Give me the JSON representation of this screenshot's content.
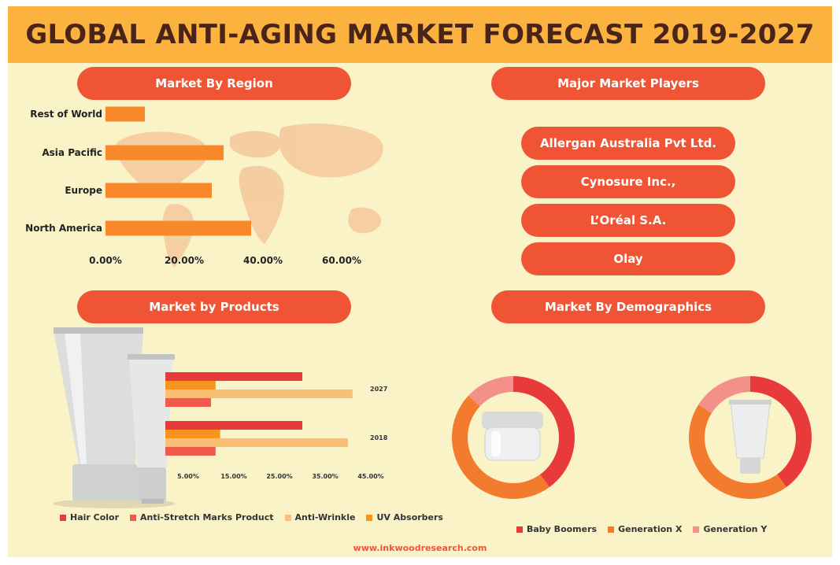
{
  "title": "GLOBAL ANTI-AGING MARKET FORECAST 2019-2027",
  "colors": {
    "background": "#faf3c8",
    "header": "#fcb23e",
    "title_text": "#4a2418",
    "pill": "#ef5434",
    "region_bar": "#f7892b",
    "map": "#f3c89b",
    "hair_color": "#e83a3a",
    "anti_stretch": "#ef5a4a",
    "anti_wrinkle": "#f9bf74",
    "uv_absorbers": "#f7941d",
    "baby_boomers": "#e83a3a",
    "generation_x": "#f37b2d",
    "generation_y": "#f4908a"
  },
  "sections": {
    "region": "Market By Region",
    "players": "Major Market Players",
    "products": "Market by Products",
    "demographics": "Market By Demographics"
  },
  "players": [
    "Allergan Australia Pvt Ltd.",
    "Cynosure Inc.,",
    "L’Oréal S.A.",
    "Olay"
  ],
  "footer": "www.inkwoodresearch.com",
  "chart_data": [
    {
      "type": "bar",
      "orientation": "horizontal",
      "title": "Market By Region",
      "categories": [
        "Rest of World",
        "Asia Pacific",
        "Europe",
        "North America"
      ],
      "values": [
        10,
        30,
        27,
        37
      ],
      "unit": "%",
      "xlim": [
        0,
        70
      ],
      "ticks": [
        0,
        20,
        40,
        60
      ],
      "tick_labels": [
        "0.00%",
        "20.00%",
        "40.00%",
        "60.00%"
      ],
      "icon": "world-map-icon"
    },
    {
      "type": "bar",
      "orientation": "horizontal",
      "title": "Market by Products",
      "groups": [
        "2027",
        "2018"
      ],
      "series": [
        {
          "name": "Hair Color",
          "values": [
            30,
            30
          ]
        },
        {
          "name": "Anti-Stretch Marks Product",
          "values": [
            10,
            11
          ]
        },
        {
          "name": "Anti-Wrinkle",
          "values": [
            41,
            40
          ]
        },
        {
          "name": "UV Absorbers",
          "values": [
            11,
            12
          ]
        }
      ],
      "bar_order": [
        "Hair Color",
        "UV Absorbers",
        "Anti-Wrinkle",
        "Anti-Stretch Marks Product"
      ],
      "unit": "%",
      "xlim": [
        0,
        50
      ],
      "ticks": [
        5,
        15,
        25,
        35,
        45
      ],
      "tick_labels": [
        "5.00%",
        "15.00%",
        "25.00%",
        "35.00%",
        "45.00%"
      ]
    },
    {
      "type": "pie",
      "donut": true,
      "title": "Market By Demographics",
      "charts": [
        {
          "name": "demographics-donut-1",
          "icon": "cream-jar-icon",
          "slices": [
            {
              "label": "Baby Boomers",
              "value": 40
            },
            {
              "label": "Generation X",
              "value": 47
            },
            {
              "label": "Generation Y",
              "value": 13
            }
          ]
        },
        {
          "name": "demographics-donut-2",
          "icon": "tube-icon",
          "slices": [
            {
              "label": "Baby Boomers",
              "value": 40
            },
            {
              "label": "Generation X",
              "value": 44
            },
            {
              "label": "Generation Y",
              "value": 16
            }
          ]
        }
      ],
      "legend": [
        "Baby Boomers",
        "Generation X",
        "Generation Y"
      ]
    }
  ]
}
